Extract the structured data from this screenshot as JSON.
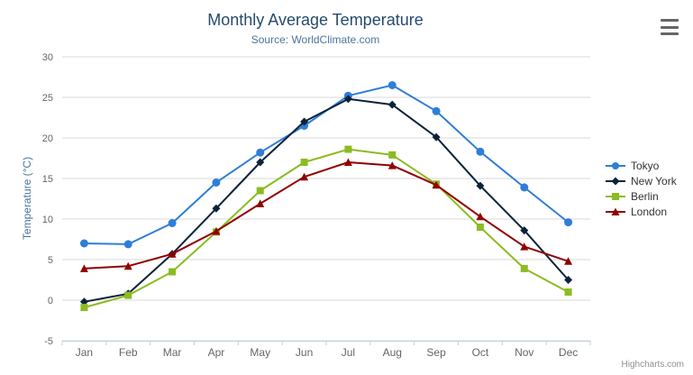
{
  "chart": {
    "title": "Monthly Average Temperature",
    "subtitle": "Source: WorldClimate.com",
    "credit": "Highcharts.com",
    "context_menu_icon": "hamburger-menu"
  },
  "colors": {
    "title": "#274b6d",
    "subtitle": "#4d759e",
    "axis_title": "#4d759e",
    "axis_labels": "#666666",
    "gridline": "#d8d8d8",
    "axis_line": "#c0d0e0",
    "legend_text": "#333333",
    "credit_text": "#909090",
    "background": "#ffffff"
  },
  "chart_data": {
    "type": "line",
    "title": "Monthly Average Temperature",
    "subtitle": "Source: WorldClimate.com",
    "xlabel": "",
    "ylabel": "Temperature (°C)",
    "categories": [
      "Jan",
      "Feb",
      "Mar",
      "Apr",
      "May",
      "Jun",
      "Jul",
      "Aug",
      "Sep",
      "Oct",
      "Nov",
      "Dec"
    ],
    "ylim": [
      -5,
      30
    ],
    "tick_interval": 5,
    "grid": "horizontal",
    "legend_position": "right",
    "series": [
      {
        "name": "Tokyo",
        "color": "#2f7ed8",
        "marker": "circle",
        "values": [
          7.0,
          6.9,
          9.5,
          14.5,
          18.2,
          21.5,
          25.2,
          26.5,
          23.3,
          18.3,
          13.9,
          9.6
        ]
      },
      {
        "name": "New York",
        "color": "#0d233a",
        "marker": "diamond",
        "values": [
          -0.2,
          0.8,
          5.7,
          11.3,
          17.0,
          22.0,
          24.8,
          24.1,
          20.1,
          14.1,
          8.6,
          2.5
        ]
      },
      {
        "name": "Berlin",
        "color": "#8bbc21",
        "marker": "square",
        "values": [
          -0.9,
          0.6,
          3.5,
          8.4,
          13.5,
          17.0,
          18.6,
          17.9,
          14.3,
          9.0,
          3.9,
          1.0
        ]
      },
      {
        "name": "London",
        "color": "#910000",
        "marker": "triangle",
        "values": [
          3.9,
          4.2,
          5.7,
          8.5,
          11.9,
          15.2,
          17.0,
          16.6,
          14.2,
          10.3,
          6.6,
          4.8
        ]
      }
    ]
  }
}
